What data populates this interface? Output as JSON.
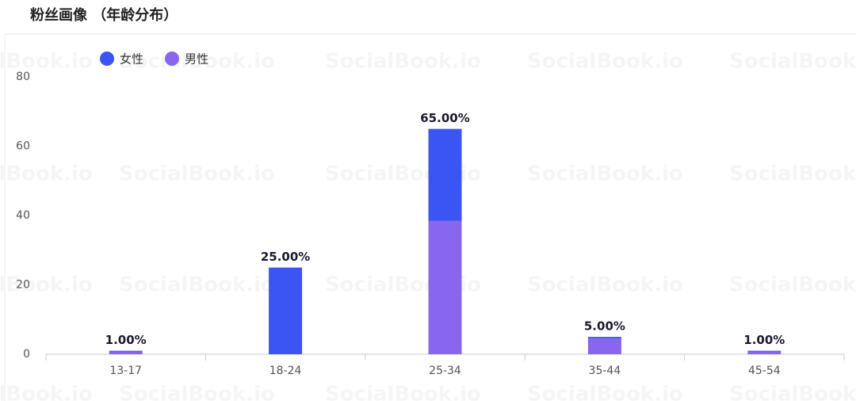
{
  "title": "粉丝画像 （年龄分布）",
  "watermark": "SocialBook.io",
  "chart_data": {
    "type": "stacked-bar",
    "categories": [
      "13-17",
      "18-24",
      "25-34",
      "35-44",
      "45-54"
    ],
    "series": [
      {
        "name": "女性",
        "color": "#3b55f5",
        "values": [
          0.2,
          25,
          26.5,
          0.5,
          0.2
        ]
      },
      {
        "name": "男性",
        "color": "#8866ee",
        "values": [
          0.8,
          0,
          38.5,
          4.5,
          0.8
        ]
      }
    ],
    "stack_order": [
      1,
      0
    ],
    "totals": {
      "values": [
        1,
        25,
        65,
        5,
        1
      ],
      "value_labels": [
        "1.00%",
        "25.00%",
        "65.00%",
        "5.00%",
        "1.00%"
      ]
    },
    "ylim": [
      0,
      80
    ],
    "yticks": [
      0,
      20,
      40,
      60,
      80
    ],
    "grid": false,
    "legend": "top-left"
  }
}
